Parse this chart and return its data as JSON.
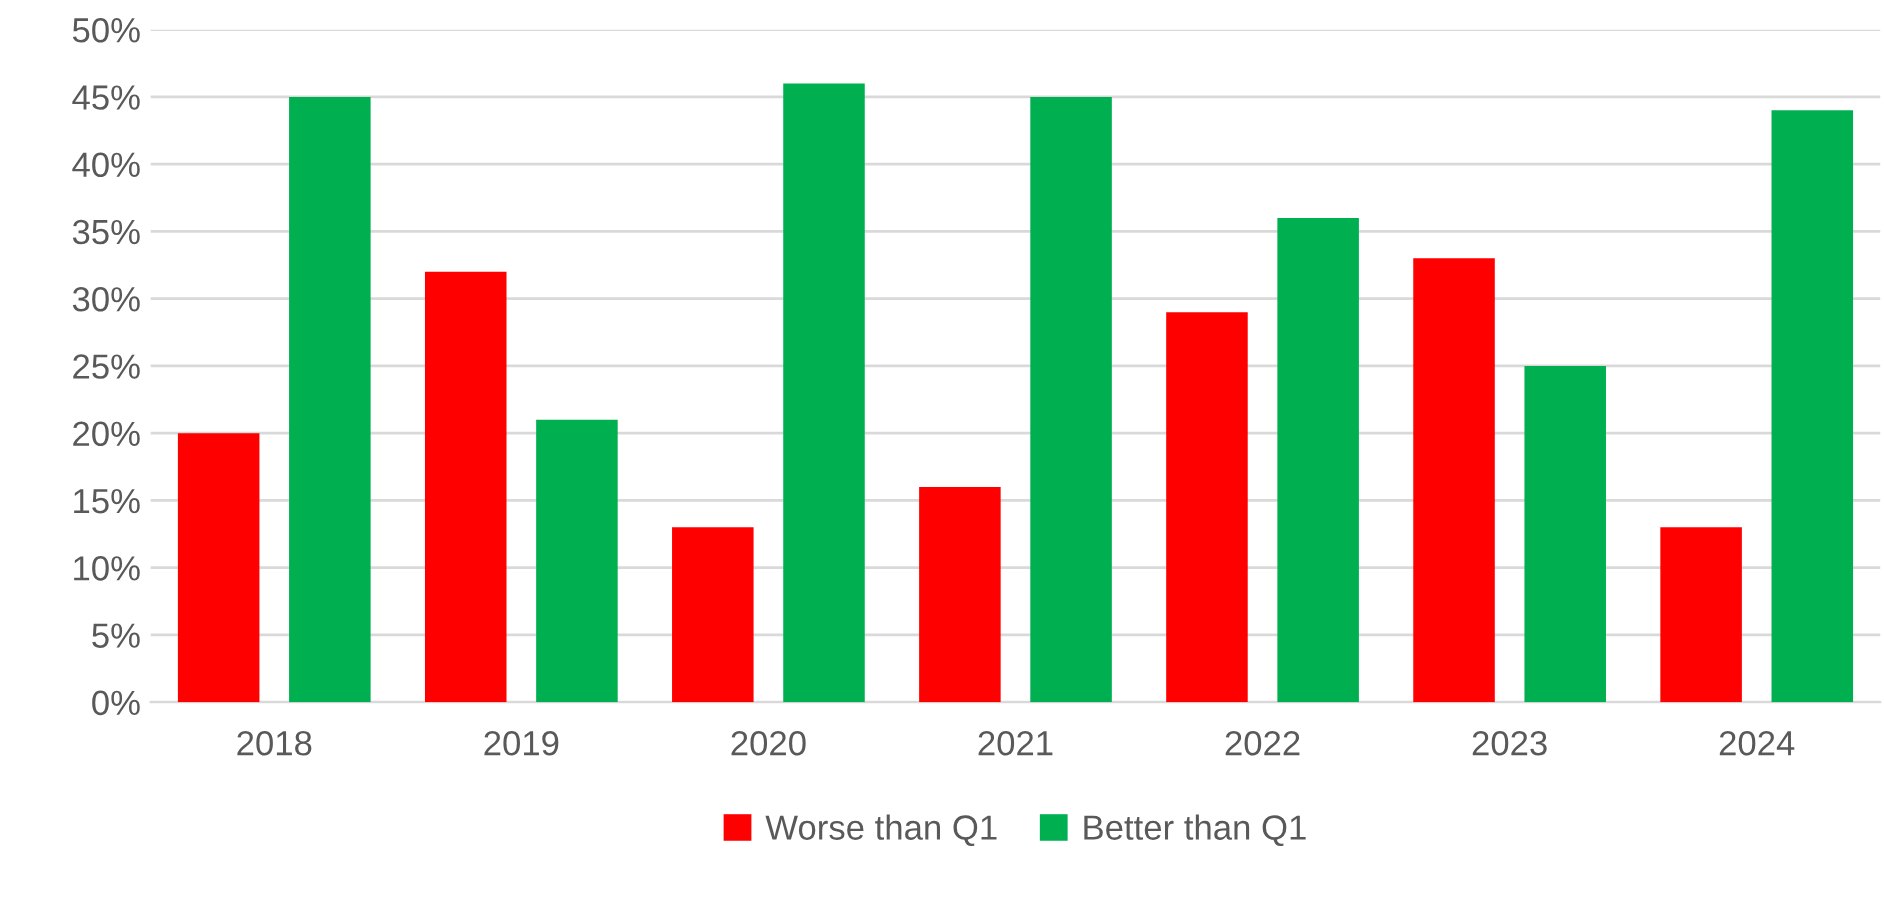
{
  "chart_data": {
    "type": "bar",
    "categories": [
      "2018",
      "2019",
      "2020",
      "2021",
      "2022",
      "2023",
      "2024"
    ],
    "series": [
      {
        "name": "Worse than Q1",
        "color": "#ff0000",
        "values": [
          20,
          32,
          13,
          16,
          29,
          33,
          13
        ]
      },
      {
        "name": "Better than Q1",
        "color": "#00b050",
        "values": [
          45,
          21,
          46,
          45,
          36,
          25,
          44
        ]
      }
    ],
    "ylim": [
      0,
      50
    ],
    "yticks": [
      {
        "value": 0,
        "label": "0%"
      },
      {
        "value": 5,
        "label": "5%"
      },
      {
        "value": 10,
        "label": "10%"
      },
      {
        "value": 15,
        "label": "15%"
      },
      {
        "value": 20,
        "label": "20%"
      },
      {
        "value": 25,
        "label": "25%"
      },
      {
        "value": 30,
        "label": "30%"
      },
      {
        "value": 35,
        "label": "35%"
      },
      {
        "value": 40,
        "label": "40%"
      },
      {
        "value": 45,
        "label": "45%"
      },
      {
        "value": 50,
        "label": "50%"
      }
    ],
    "grid": "y",
    "legend": "bottom"
  }
}
